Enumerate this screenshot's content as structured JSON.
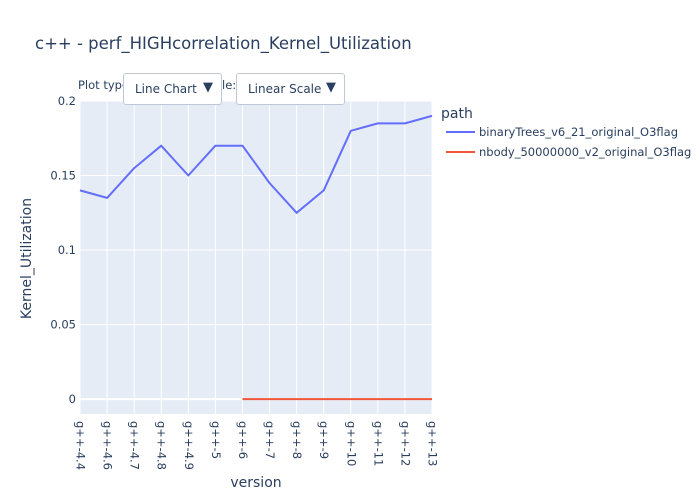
{
  "title": "c++ - perf_HIGHcorrelation_Kernel_Utilization",
  "controls": {
    "plot_type_label": "Plot type",
    "scale_label_fragment": "le:",
    "plot_type_dropdown": {
      "selected": "Line Chart",
      "arrow": "▼"
    },
    "scale_dropdown": {
      "selected": "Linear Scale",
      "arrow": "▼"
    }
  },
  "colors": {
    "plot_bg": "#e5ecf6",
    "grid": "#ffffff",
    "series": [
      "#636efa",
      "#ef553b"
    ]
  },
  "chart_data": {
    "type": "line",
    "title": "c++ - perf_HIGHcorrelation_Kernel_Utilization",
    "xlabel": "version",
    "ylabel": "Kernel_Utilization",
    "categories": [
      "g++-4.4",
      "g++-4.6",
      "g++-4.7",
      "g++-4.8",
      "g++-4.9",
      "g++-5",
      "g++-6",
      "g++-7",
      "g++-8",
      "g++-9",
      "g++-10",
      "g++-11",
      "g++-12",
      "g++-13"
    ],
    "ylim": [
      -0.01,
      0.2
    ],
    "yticks": [
      0,
      0.05,
      0.1,
      0.15,
      0.2
    ],
    "ytick_labels": [
      "0",
      "0.05",
      "0.1",
      "0.15",
      "0.2"
    ],
    "legend_title": "path",
    "legend_position": "top-right",
    "grid": true,
    "series": [
      {
        "name": "binaryTrees_v6_21_original_O3flag",
        "values": [
          0.14,
          0.135,
          0.155,
          0.17,
          0.15,
          0.17,
          0.17,
          0.145,
          0.125,
          0.14,
          0.18,
          0.185,
          0.185,
          0.19
        ]
      },
      {
        "name": "nbody_50000000_v2_original_O3flag",
        "values": [
          null,
          null,
          null,
          null,
          null,
          null,
          0,
          0,
          0,
          0,
          0,
          0,
          0,
          0
        ]
      }
    ]
  }
}
